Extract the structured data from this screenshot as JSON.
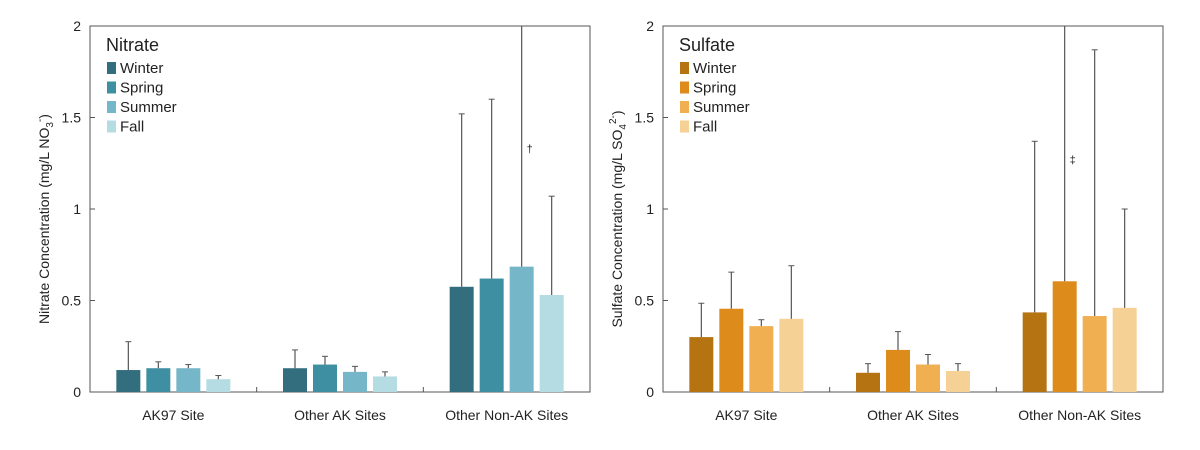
{
  "chart_data": [
    {
      "type": "bar",
      "title": "Nitrate",
      "ylabel": "Nitrate Concentration (mg/L NO",
      "ylabel_sub": "3",
      "ylabel_sup": "-",
      "ylabel_end": ")",
      "ylim": [
        0,
        2
      ],
      "yticks": [
        "0",
        "0.5",
        "1",
        "1.5",
        "2"
      ],
      "categories": [
        "AK97 Site",
        "Other AK Sites",
        "Other Non-AK Sites"
      ],
      "series": [
        {
          "name": "Winter",
          "color": "#336e7e",
          "values": [
            0.12,
            0.13,
            0.575
          ],
          "errors": [
            0.275,
            0.23,
            1.52
          ]
        },
        {
          "name": "Spring",
          "color": "#3f8fa2",
          "values": [
            0.13,
            0.15,
            0.62
          ],
          "errors": [
            0.165,
            0.195,
            1.6
          ]
        },
        {
          "name": "Summer",
          "color": "#75b7c8",
          "values": [
            0.13,
            0.11,
            0.685
          ],
          "errors": [
            0.15,
            0.14,
            2.0
          ]
        },
        {
          "name": "Fall",
          "color": "#b5dbe3",
          "values": [
            0.07,
            0.085,
            0.53
          ],
          "errors": [
            0.09,
            0.11,
            1.07
          ]
        }
      ],
      "annotations": [
        {
          "text": "†",
          "category": 2,
          "series": 2,
          "y": 1.31
        }
      ],
      "grid": false,
      "legend_position": "top-left"
    },
    {
      "type": "bar",
      "title": "Sulfate",
      "ylabel": "Sulfate Concentration (mg/L SO",
      "ylabel_sub": "4",
      "ylabel_sup": "2-",
      "ylabel_end": ")",
      "ylim": [
        0,
        2
      ],
      "yticks": [
        "0",
        "0.5",
        "1",
        "1.5",
        "2"
      ],
      "categories": [
        "AK97 Site",
        "Other AK Sites",
        "Other Non-AK Sites"
      ],
      "series": [
        {
          "name": "Winter",
          "color": "#b57312",
          "values": [
            0.3,
            0.105,
            0.435
          ],
          "errors": [
            0.485,
            0.155,
            1.37
          ]
        },
        {
          "name": "Spring",
          "color": "#dd8b1a",
          "values": [
            0.455,
            0.23,
            0.605
          ],
          "errors": [
            0.655,
            0.33,
            2.0
          ]
        },
        {
          "name": "Summer",
          "color": "#f0af50",
          "values": [
            0.36,
            0.15,
            0.415
          ],
          "errors": [
            0.395,
            0.205,
            1.87
          ]
        },
        {
          "name": "Fall",
          "color": "#f6d195",
          "values": [
            0.4,
            0.115,
            0.46
          ],
          "errors": [
            0.69,
            0.155,
            1.0
          ]
        }
      ],
      "annotations": [
        {
          "text": "‡",
          "category": 2,
          "series": 1,
          "y": 1.25
        }
      ],
      "grid": false,
      "legend_position": "top-left"
    }
  ]
}
